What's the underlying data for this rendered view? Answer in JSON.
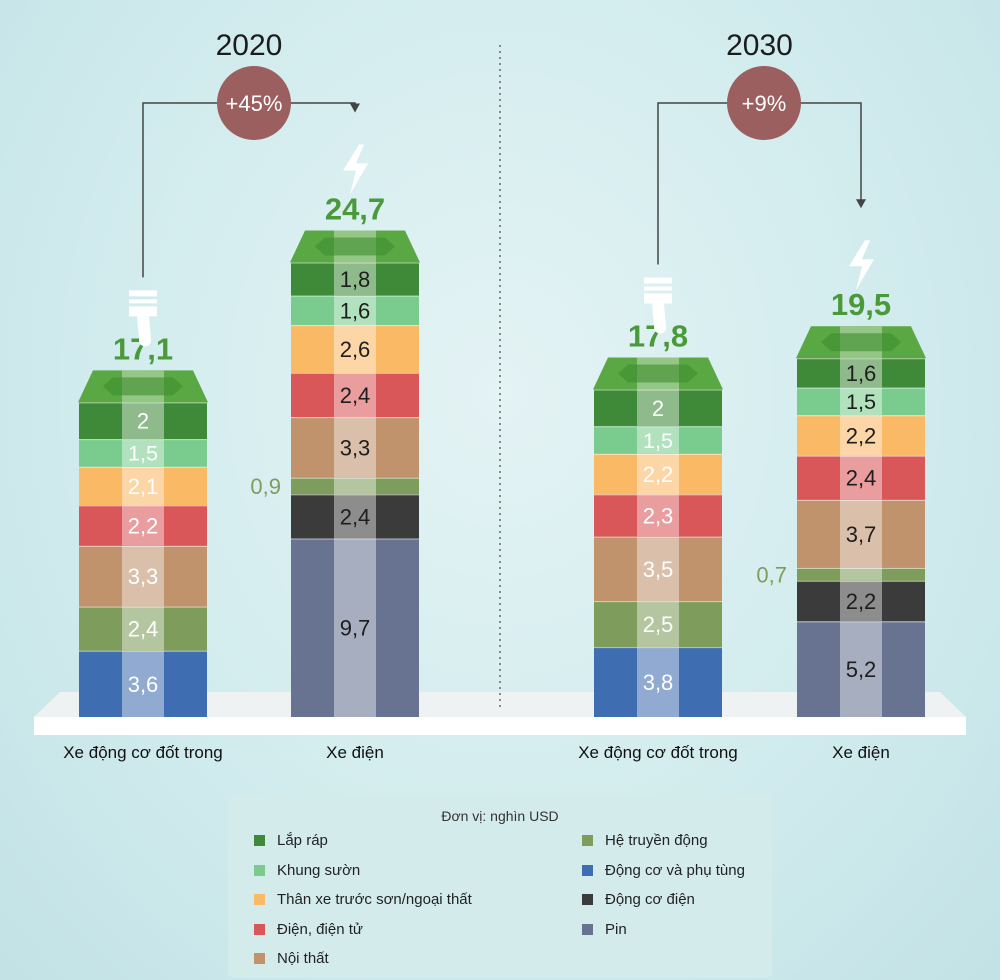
{
  "colors": {
    "assembly": "#3e8a38",
    "chassis": "#79cc8e",
    "body": "#f9b965",
    "electrical": "#d95659",
    "interior": "#c0936c",
    "transmission": "#7e9d5c",
    "engine": "#3f6db2",
    "motor": "#3b3b3b",
    "battery": "#677390",
    "badge": "#9c5f5f",
    "total_text": "#4a9a3c"
  },
  "legend": {
    "unit": "Đơn vị: nghìn USD",
    "items": [
      {
        "key": "assembly",
        "label": "Lắp ráp"
      },
      {
        "key": "chassis",
        "label": "Khung sườn"
      },
      {
        "key": "body",
        "label": "Thân xe trước sơn/ngoại thất"
      },
      {
        "key": "electrical",
        "label": "Điện, điện tử"
      },
      {
        "key": "interior",
        "label": "Nội thất"
      },
      {
        "key": "transmission",
        "label": "Hệ truyền động"
      },
      {
        "key": "engine",
        "label": "Động cơ và phụ tùng"
      },
      {
        "key": "motor",
        "label": "Động cơ điện"
      },
      {
        "key": "battery",
        "label": "Pin"
      }
    ]
  },
  "chart_data": {
    "type": "bar",
    "stacked": true,
    "unit": "Đơn vị: nghìn USD",
    "groups": [
      {
        "year": "2020",
        "badge": "+45%",
        "bars": [
          {
            "label": "Xe động cơ đốt trong",
            "total": "17,1",
            "segments": [
              {
                "key": "engine",
                "value": 3.6,
                "label": "3,6"
              },
              {
                "key": "transmission",
                "value": 2.4,
                "label": "2,4"
              },
              {
                "key": "interior",
                "value": 3.3,
                "label": "3,3"
              },
              {
                "key": "electrical",
                "value": 2.2,
                "label": "2,2"
              },
              {
                "key": "body",
                "value": 2.1,
                "label": "2,1"
              },
              {
                "key": "chassis",
                "value": 1.5,
                "label": "1,5"
              },
              {
                "key": "assembly",
                "value": 2.0,
                "label": "2"
              }
            ]
          },
          {
            "label": "Xe điện",
            "total": "24,7",
            "segments": [
              {
                "key": "battery",
                "value": 9.7,
                "label": "9,7"
              },
              {
                "key": "motor",
                "value": 2.4,
                "label": "2,4"
              },
              {
                "key": "transmission",
                "value": 0.9,
                "label": "0,9",
                "outside": true
              },
              {
                "key": "interior",
                "value": 3.3,
                "label": "3,3"
              },
              {
                "key": "electrical",
                "value": 2.4,
                "label": "2,4"
              },
              {
                "key": "body",
                "value": 2.6,
                "label": "2,6"
              },
              {
                "key": "chassis",
                "value": 1.6,
                "label": "1,6"
              },
              {
                "key": "assembly",
                "value": 1.8,
                "label": "1,8"
              }
            ]
          }
        ]
      },
      {
        "year": "2030",
        "badge": "+9%",
        "bars": [
          {
            "label": "Xe động cơ đốt trong",
            "total": "17,8",
            "segments": [
              {
                "key": "engine",
                "value": 3.8,
                "label": "3,8"
              },
              {
                "key": "transmission",
                "value": 2.5,
                "label": "2,5"
              },
              {
                "key": "interior",
                "value": 3.5,
                "label": "3,5"
              },
              {
                "key": "electrical",
                "value": 2.3,
                "label": "2,3"
              },
              {
                "key": "body",
                "value": 2.2,
                "label": "2,2"
              },
              {
                "key": "chassis",
                "value": 1.5,
                "label": "1,5"
              },
              {
                "key": "assembly",
                "value": 2.0,
                "label": "2"
              }
            ]
          },
          {
            "label": "Xe điện",
            "total": "19,5",
            "segments": [
              {
                "key": "battery",
                "value": 5.2,
                "label": "5,2"
              },
              {
                "key": "motor",
                "value": 2.2,
                "label": "2,2"
              },
              {
                "key": "transmission",
                "value": 0.7,
                "label": "0,7",
                "outside": true
              },
              {
                "key": "interior",
                "value": 3.7,
                "label": "3,7"
              },
              {
                "key": "electrical",
                "value": 2.4,
                "label": "2,4"
              },
              {
                "key": "body",
                "value": 2.2,
                "label": "2,2"
              },
              {
                "key": "chassis",
                "value": 1.5,
                "label": "1,5"
              },
              {
                "key": "assembly",
                "value": 1.6,
                "label": "1,6"
              }
            ]
          }
        ]
      }
    ]
  }
}
